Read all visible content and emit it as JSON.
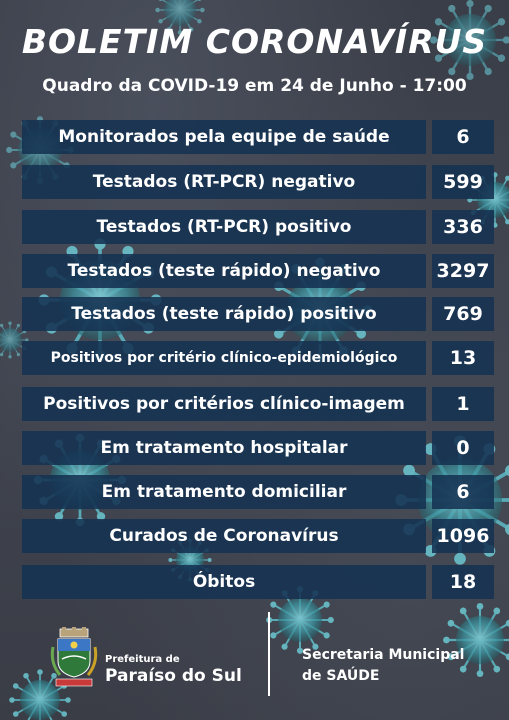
{
  "header": {
    "title": "BOLETIM CORONAVÍRUS",
    "subtitle": "Quadro da COVID-19 em 24 de Junho - 17:00"
  },
  "rows": [
    {
      "label": "Monitorados pela equipe de saúde",
      "value": "6"
    },
    {
      "label": "Testados (RT-PCR) negativo",
      "value": "599"
    },
    {
      "label": "Testados (RT-PCR) positivo",
      "value": "336"
    },
    {
      "label": "Testados (teste rápido) negativo",
      "value": "3297"
    },
    {
      "label": "Testados (teste rápido) positivo",
      "value": "769"
    },
    {
      "label": "Positivos por critério clínico-epidemiológico",
      "value": "13"
    },
    {
      "label": "Positivos por critérios clínico-imagem",
      "value": "1"
    },
    {
      "label": "Em tratamento hospitalar",
      "value": "0"
    },
    {
      "label": "Em tratamento domiciliar",
      "value": "6"
    },
    {
      "label": "Curados de Coronavírus",
      "value": "1096"
    },
    {
      "label": "Óbitos",
      "value": "18"
    }
  ],
  "footer": {
    "prefeitura_small": "Prefeitura de",
    "prefeitura_name": "Paraíso do Sul",
    "secretaria_line1": "Secretaria Municipal",
    "secretaria_line2": "de SAÚDE"
  },
  "colors": {
    "background": "#3b3f4a",
    "box": "#143252",
    "virus": "#5fc4cf",
    "text": "#ffffff"
  },
  "icons": {
    "background_art": "coronavirus-particles",
    "logo": "municipal-coat-of-arms"
  }
}
